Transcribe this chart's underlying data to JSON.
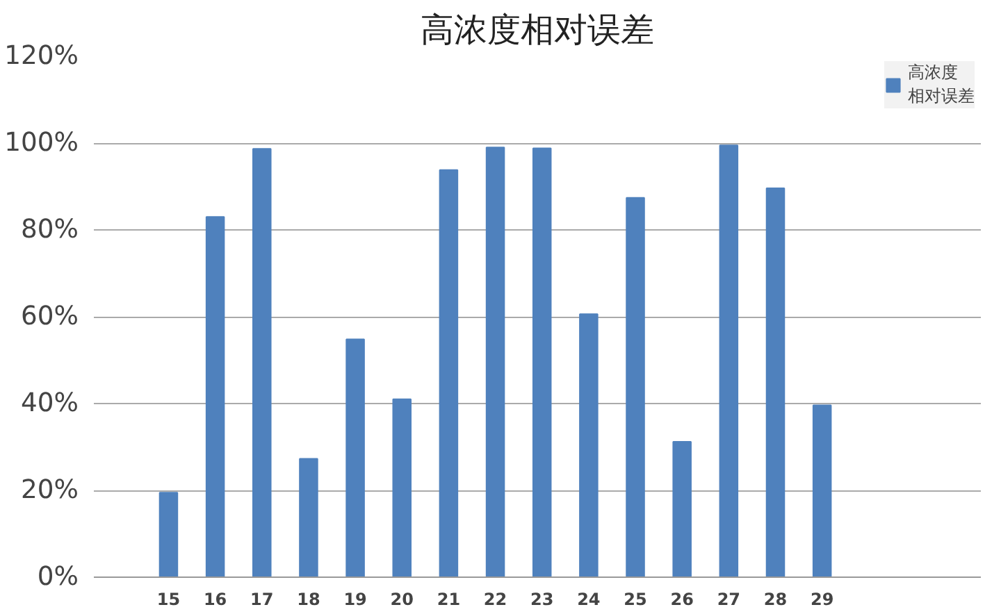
{
  "chart_data": {
    "type": "bar",
    "title": "高浓度相对误差",
    "categories": [
      "15",
      "16",
      "17",
      "18",
      "19",
      "20",
      "21",
      "22",
      "23",
      "24",
      "25",
      "26",
      "27",
      "28",
      "29"
    ],
    "series": [
      {
        "name": "高浓度相对误差",
        "color": "#4f81bd",
        "values": [
          19.5,
          83,
          98.7,
          27.3,
          54.8,
          41,
          93.8,
          99,
          98.8,
          60.6,
          87.4,
          31.2,
          99.5,
          89.6,
          39.6
        ]
      }
    ],
    "ylim": [
      0,
      120
    ],
    "yticks": [
      {
        "value": 0,
        "label": "0%"
      },
      {
        "value": 20,
        "label": "20%"
      },
      {
        "value": 40,
        "label": "40%"
      },
      {
        "value": 60,
        "label": "60%"
      },
      {
        "value": 80,
        "label": "80%"
      },
      {
        "value": 100,
        "label": "100%"
      },
      {
        "value": 120,
        "label": "120%"
      }
    ],
    "grid": "y",
    "legend": "right"
  }
}
